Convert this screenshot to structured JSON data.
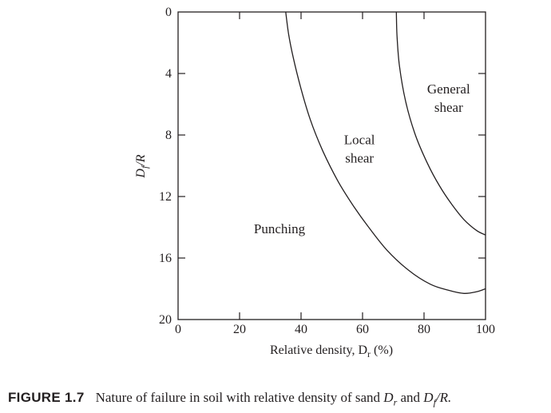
{
  "caption": {
    "label": "FIGURE 1.7",
    "text_prefix": "Nature of failure in soil with relative density of sand ",
    "dr_symbol": "D",
    "dr_sub": "r",
    "and_text": " and ",
    "df_symbol": "D",
    "df_sub": "f",
    "df_suffix": "/R."
  },
  "chart_data": {
    "type": "line",
    "xlabel": "Relative density, D",
    "xlabel_sub": "r",
    "xlabel_unit": " (%)",
    "ylabel_main": "D",
    "ylabel_sub": "f",
    "ylabel_rest": "/R",
    "xlim": [
      0,
      100
    ],
    "ylim": [
      0,
      20
    ],
    "y_inverted": true,
    "x_ticks": [
      0,
      20,
      40,
      60,
      80,
      100
    ],
    "y_ticks": [
      0,
      4,
      8,
      12,
      16,
      20
    ],
    "series": [
      {
        "x": [
          35,
          36,
          37.5,
          40,
          43,
          47,
          52,
          57,
          62,
          68,
          75,
          82,
          88,
          93,
          97,
          100
        ],
        "y": [
          0,
          1.5,
          3,
          5,
          7,
          9,
          11,
          12.6,
          14,
          15.5,
          16.8,
          17.7,
          18.1,
          18.3,
          18.2,
          18
        ]
      },
      {
        "x": [
          71,
          71.2,
          72,
          74,
          77,
          81,
          85,
          89,
          93,
          97,
          100
        ],
        "y": [
          0,
          1.5,
          3.5,
          5.8,
          7.9,
          9.8,
          11.3,
          12.5,
          13.5,
          14.2,
          14.5
        ]
      }
    ],
    "annotations": [
      {
        "lines": [
          "General",
          "shear"
        ],
        "x": 88,
        "y": 5.3
      },
      {
        "lines": [
          "Local",
          "shear"
        ],
        "x": 59,
        "y": 8.6
      },
      {
        "lines": [
          "Punching"
        ],
        "x": 33,
        "y": 14.4
      }
    ]
  }
}
